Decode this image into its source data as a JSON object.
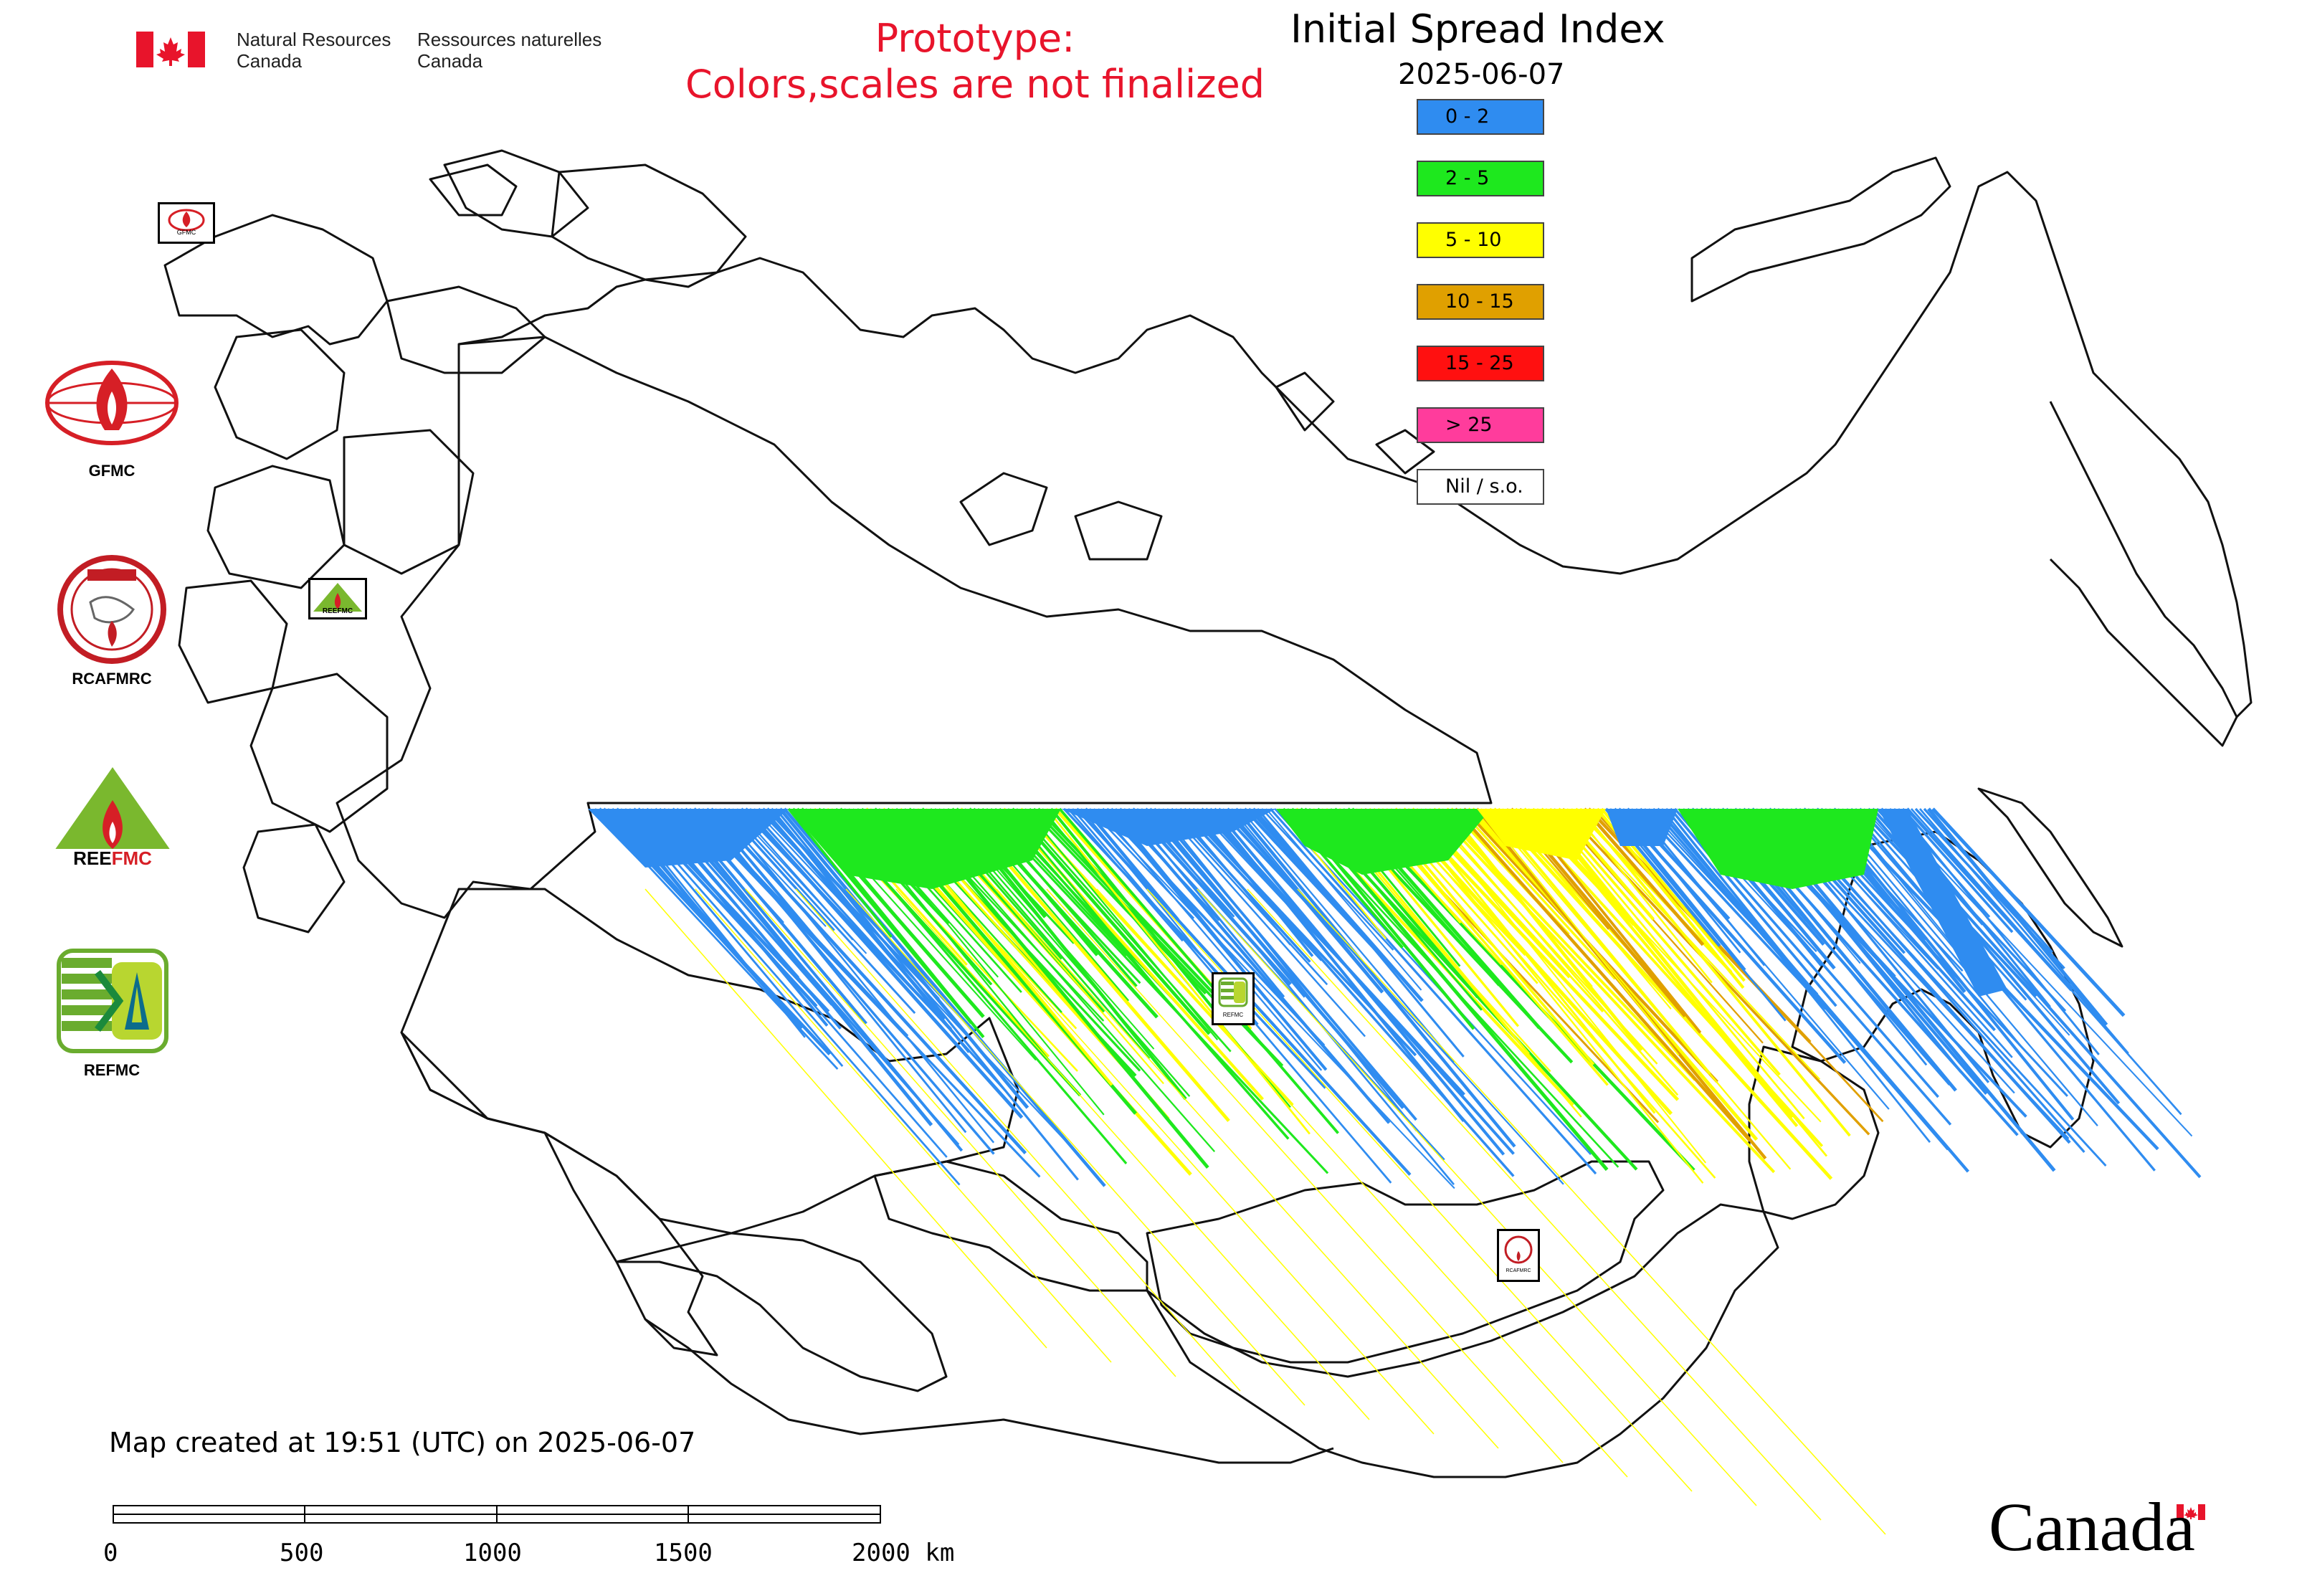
{
  "header": {
    "org_en": "Natural Resources\nCanada",
    "org_fr": "Ressources naturelles\nCanada",
    "prototype_line1": "Prototype:",
    "prototype_line2": "Colors,scales are not finalized",
    "title": "Initial Spread Index",
    "date": "2025-06-07"
  },
  "legend": [
    {
      "label": "0 - 2",
      "color": "#2f8cf0"
    },
    {
      "label": "2 - 5",
      "color": "#1ee81e"
    },
    {
      "label": "5 - 10",
      "color": "#ffff00"
    },
    {
      "label": "10 - 15",
      "color": "#e0a000"
    },
    {
      "label": "15 - 25",
      "color": "#ff1010"
    },
    {
      "label": "> 25",
      "color": "#ff3c9c"
    },
    {
      "label": "Nil / s.o.",
      "color": "#ffffff"
    }
  ],
  "logos": [
    {
      "name": "gfmc-logo",
      "caption": "GFMC",
      "mini_text": "GFMC"
    },
    {
      "name": "rcafmrc-logo",
      "caption": "RCAFMRC",
      "mini_text": "RCAFMRC"
    },
    {
      "name": "reefmc-logo",
      "caption": "",
      "mini_text": "REEFMC"
    },
    {
      "name": "refmc-logo",
      "caption": "REFMC",
      "mini_text": "REFMC"
    }
  ],
  "footer": {
    "created": "Map created at 19:51 (UTC) on 2025-06-07",
    "scale_labels": [
      "0",
      "500",
      "1000",
      "1500",
      "2000 km"
    ],
    "wordmark": "Canada"
  },
  "icons": {
    "flag": "canada-flag-icon",
    "scale": "scale-bar-icon"
  }
}
